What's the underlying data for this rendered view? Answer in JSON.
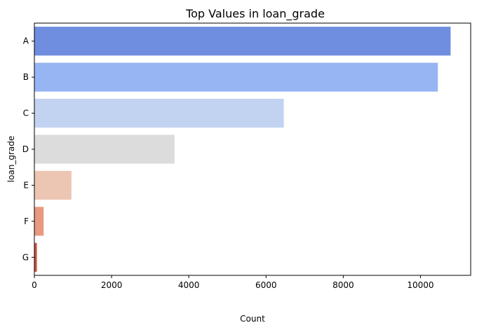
{
  "chart_data": {
    "type": "bar",
    "orientation": "horizontal",
    "title": "Top Values in loan_grade",
    "xlabel": "Count",
    "ylabel": "loan_grade",
    "categories": [
      "A",
      "B",
      "C",
      "D",
      "E",
      "F",
      "G"
    ],
    "values": [
      10780,
      10450,
      6460,
      3630,
      960,
      240,
      65
    ],
    "colors": [
      "#6f8ee0",
      "#97b5f2",
      "#c2d3f2",
      "#dcdcdc",
      "#ecc6b3",
      "#e8997e",
      "#d24e3e"
    ],
    "xlim": [
      0,
      11300
    ],
    "xticks": [
      0,
      2000,
      4000,
      6000,
      8000,
      10000
    ],
    "grid": false,
    "legend": "none"
  }
}
